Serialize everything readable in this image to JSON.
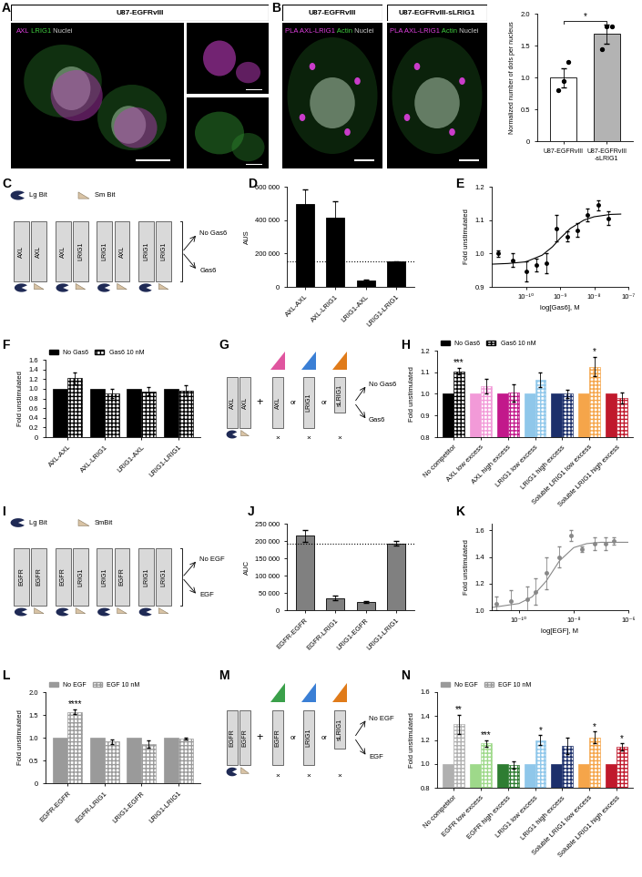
{
  "chart_data": [
    {
      "type": "bar",
      "categories": [
        "U87-EGFRvIII",
        "U87-EGFRvIII\n-sLRIG1"
      ],
      "values": [
        1.0,
        1.68
      ],
      "errors": [
        0.15,
        0.15
      ],
      "points": [
        [
          0.8,
          0.95,
          1.25
        ],
        [
          1.45,
          1.8,
          1.8
        ]
      ],
      "marker": "circle",
      "colors": [
        "#ffffff",
        "#b3b3b3"
      ],
      "ylabel": "Normalized number of dots per nucleus",
      "ylim": [
        0,
        2.0
      ],
      "yticks": [
        0,
        0.5,
        1.0,
        1.5,
        2.0
      ],
      "significance": "*"
    },
    {
      "panel": "D",
      "type": "bar",
      "categories": [
        "AXL-AXL",
        "AXL-LRIG1",
        "LRIG1-AXL",
        "LRIG1-LRIG1"
      ],
      "values": [
        495000,
        415000,
        40000,
        150000
      ],
      "errors": [
        90000,
        95000,
        5000,
        5000
      ],
      "color": "#000000",
      "ylabel": "AUS",
      "ylim": [
        0,
        600000
      ],
      "yticks": [
        0,
        {
          "value": 200000,
          "label": "200 000"
        },
        {
          "value": 400000,
          "label": "400 000"
        },
        {
          "value": 600000,
          "label": "600 000"
        }
      ],
      "reference_line": 150000
    },
    {
      "panel": "E",
      "type": "scatter",
      "x": [
        1.5e-11,
        4e-11,
        1e-10,
        2e-10,
        4e-10,
        8e-10,
        1.6e-09,
        3.2e-09,
        6.4e-09,
        1.3e-08,
        2.6e-08
      ],
      "values": [
        1.0,
        0.98,
        0.945,
        0.965,
        0.97,
        1.075,
        1.05,
        1.07,
        1.115,
        1.145,
        1.105
      ],
      "errors": [
        0.01,
        0.02,
        0.03,
        0.02,
        0.03,
        0.04,
        0.015,
        0.02,
        0.02,
        0.015,
        0.02
      ],
      "fit_x": [
        1e-11,
        3e-11,
        1e-10,
        3e-10,
        6e-10,
        1e-09,
        2e-09,
        5e-09,
        1e-08,
        3e-08,
        6e-08
      ],
      "fit_values": [
        0.968,
        0.97,
        0.975,
        0.995,
        1.02,
        1.045,
        1.075,
        1.1,
        1.11,
        1.117,
        1.118
      ],
      "color": "#000000",
      "marker": "circle",
      "log": "x",
      "xlabel": "log[Gas6], M",
      "ylabel": "Fold unstimulated",
      "xlim": [
        1e-11,
        1e-07
      ],
      "xticks": [
        {
          "value": 1e-10,
          "label": "10⁻¹⁰"
        },
        {
          "value": 1e-09,
          "label": "10⁻⁹"
        },
        {
          "value": 1e-08,
          "label": "10⁻⁸"
        },
        {
          "value": 1e-07,
          "label": "10⁻⁷"
        }
      ],
      "ylim": [
        0.9,
        1.2
      ],
      "yticks": [
        0.9,
        1.0,
        1.1,
        1.2
      ]
    },
    {
      "panel": "F",
      "type": "bar",
      "categories": [
        "AXL-AXL",
        "AXL-LRIG1",
        "LRIG1-AXL",
        "LRIG1-LRIG1"
      ],
      "series": [
        {
          "name": "No Gas6",
          "color": "#000000",
          "values": [
            1,
            1,
            1,
            1
          ]
        },
        {
          "name": "Gas6 10 nM",
          "color": "#000000",
          "values": [
            1.22,
            0.9,
            0.95,
            0.96
          ],
          "errors": [
            0.12,
            0.09,
            0.08,
            0.12
          ]
        }
      ],
      "ylabel": "Fold unstimulated",
      "ylim": [
        0,
        1.6
      ],
      "yticks": [
        0,
        0.2,
        0.4,
        0.6,
        0.8,
        1.0,
        1.2,
        1.4,
        1.6
      ],
      "legend": "lower left"
    },
    {
      "panel": "H",
      "type": "bar",
      "categories": [
        "No competitor",
        "AXL low excess",
        "AXL high excess",
        "LRIG1 low excess",
        "LRIG1 high excess",
        "Soluble LRIG1 low excess",
        "Soluble LRIG1 high excess"
      ],
      "colors": [
        "#000000",
        "#f29ad8",
        "#c2188b",
        "#8fc7ea",
        "#1c2f6b",
        "#f5a54a",
        "#c0192c"
      ],
      "series": [
        {
          "name": "No Gas6",
          "color": "#000000",
          "values": [
            1,
            1,
            1,
            1,
            1,
            1,
            1
          ]
        },
        {
          "name": "Gas6 10 nM",
          "color": "#000000",
          "values": [
            1.105,
            1.035,
            1.005,
            1.065,
            1.0,
            1.125,
            0.98
          ],
          "errors": [
            0.015,
            0.035,
            0.04,
            0.035,
            0.02,
            0.045,
            0.025
          ]
        }
      ],
      "significance": [
        "***",
        null,
        null,
        null,
        null,
        "*",
        null
      ],
      "ylabel": "Fold unstimulated",
      "ylim": [
        0.8,
        1.2
      ],
      "yticks": [
        0.8,
        0.9,
        1.0,
        1.1,
        1.2
      ],
      "legend": "lower left"
    },
    {
      "panel": "J",
      "type": "bar",
      "categories": [
        "EGFR-EGFR",
        "EGFR-LRIG1",
        "LRIG1-EGFR",
        "LRIG1-LRIG1"
      ],
      "values": [
        215000,
        35000,
        23000,
        193000
      ],
      "errors": [
        17000,
        7000,
        3000,
        6000
      ],
      "color": "#808080",
      "ylabel": "AUC",
      "ylim": [
        0,
        250000
      ],
      "yticks": [
        0,
        {
          "value": 50000,
          "label": "50 000"
        },
        {
          "value": 100000,
          "label": "100 000"
        },
        {
          "value": 150000,
          "label": "150 000"
        },
        {
          "value": 200000,
          "label": "200 000"
        },
        {
          "value": 250000,
          "label": "250 000"
        }
      ],
      "reference_line": 193000
    },
    {
      "panel": "K",
      "type": "scatter",
      "x": [
        1.5e-11,
        5e-11,
        2e-10,
        4e-10,
        1e-09,
        3e-09,
        8e-09,
        2e-08,
        6e-08,
        1.5e-07,
        3e-07
      ],
      "values": [
        1.05,
        1.07,
        1.08,
        1.14,
        1.28,
        1.4,
        1.56,
        1.46,
        1.5,
        1.5,
        1.52
      ],
      "errors": [
        0.05,
        0.08,
        0.1,
        0.1,
        0.12,
        0.08,
        0.04,
        0.02,
        0.05,
        0.05,
        0.03
      ],
      "fit_x": [
        1e-11,
        1e-10,
        3e-10,
        1e-09,
        3e-09,
        1e-08,
        3e-08,
        1e-07,
        1e-06
      ],
      "fit_values": [
        1.02,
        1.05,
        1.1,
        1.22,
        1.37,
        1.47,
        1.5,
        1.51,
        1.51
      ],
      "color": "#888888",
      "marker": "circle",
      "log": "x",
      "xlabel": "log[EGF], M",
      "ylabel": "Fold unstimulated",
      "xlim": [
        1e-11,
        1e-06
      ],
      "xticks": [
        {
          "value": 1e-10,
          "label": "10⁻¹⁰"
        },
        {
          "value": 1e-08,
          "label": "10⁻⁸"
        },
        {
          "value": 1e-06,
          "label": "10⁻⁶"
        }
      ],
      "ylim": [
        1.0,
        1.65
      ],
      "yticks": [
        1.0,
        1.2,
        1.4,
        1.6
      ]
    },
    {
      "panel": "L",
      "type": "bar",
      "categories": [
        "EGFR-EGFR",
        "EGFR-LRIG1",
        "LRIG1-EGFR",
        "LRIG1-LRIG1"
      ],
      "series": [
        {
          "name": "No EGF",
          "color": "#9a9a9a",
          "values": [
            1,
            1,
            1,
            1
          ]
        },
        {
          "name": "EGF 10 nM",
          "color": "#9a9a9a",
          "values": [
            1.57,
            0.92,
            0.87,
            0.98
          ],
          "errors": [
            0.05,
            0.05,
            0.08,
            0.02
          ]
        }
      ],
      "significance": [
        "****",
        null,
        null,
        null
      ],
      "ylabel": "Fold unstimulated",
      "ylim": [
        0,
        2.0
      ],
      "yticks": [
        0,
        0.5,
        1.0,
        1.5,
        2.0
      ],
      "legend": "lower left"
    },
    {
      "panel": "N",
      "type": "bar",
      "categories": [
        "No competitor",
        "EGFR low excess",
        "EGFR high excess",
        "LRIG1 low excess",
        "LRIG1 high excess",
        "Soluble LRIG1 low excess",
        "Soluble LRIG1 high excess"
      ],
      "colors": [
        "#b0b0b0",
        "#9ed98a",
        "#2e7d32",
        "#8fc7ea",
        "#1c2f6b",
        "#f5a54a",
        "#c0192c"
      ],
      "series": [
        {
          "name": "No EGF",
          "color": "#9a9a9a",
          "values": [
            1,
            1,
            1,
            1,
            1,
            1,
            1
          ]
        },
        {
          "name": "EGF 10 nM",
          "color": "#9a9a9a",
          "values": [
            1.33,
            1.17,
            0.99,
            1.2,
            1.15,
            1.22,
            1.14
          ],
          "errors": [
            0.08,
            0.03,
            0.03,
            0.04,
            0.07,
            0.05,
            0.03
          ]
        }
      ],
      "significance": [
        "**",
        "***",
        null,
        "*",
        null,
        "*",
        "*"
      ],
      "ylabel": "Fold unstimulated",
      "ylim": [
        0.8,
        1.6
      ],
      "yticks": [
        0.8,
        1.0,
        1.2,
        1.4,
        1.6
      ],
      "legend": "lower left"
    }
  ],
  "images": [
    {
      "panel": "A",
      "titles": [
        "U87-EGFRvIII"
      ],
      "channels": [
        {
          "label": "AXL",
          "color": "#e040e0"
        },
        {
          "label": "LRIG1",
          "color": "#40d040"
        },
        {
          "label": "Nuclei",
          "color": "#cccccc"
        }
      ]
    },
    {
      "panel": "B",
      "titles": [
        "U87-EGFRvIII",
        "U87-EGFRvIII-sLRIG1"
      ],
      "channels": [
        {
          "label": "PLA AXL-LRIG1",
          "color": "#e040e0"
        },
        {
          "label": "Actin",
          "color": "#40d040"
        },
        {
          "label": "Nuclei",
          "color": "#cccccc"
        }
      ]
    }
  ],
  "diagrams": [
    {
      "panel": "C",
      "lg_bit": "Lg Bit",
      "sm_bit": "Sm Bit",
      "constructs": [
        [
          "AXL",
          "AXL"
        ],
        [
          "AXL",
          "LRIG1"
        ],
        [
          "LRIG1",
          "AXL"
        ],
        [
          "LRIG1",
          "LRIG1"
        ]
      ],
      "conditions": [
        "No Gas6",
        "Gas6"
      ]
    },
    {
      "panel": "G",
      "construct": [
        "AXL",
        "AXL"
      ],
      "plus": "+",
      "competitors": [
        {
          "label": "AXL",
          "color": "#e0559f"
        },
        {
          "label": "LRIG1",
          "color": "#3a7fd5"
        },
        {
          "label": "sLRIG1",
          "color": "#e07b1a"
        }
      ],
      "joiner": "or",
      "multiplier": "×",
      "conditions": [
        "No Gas6",
        "Gas6"
      ]
    },
    {
      "panel": "I",
      "lg_bit": "Lg Bit",
      "sm_bit": "SmBit",
      "constructs": [
        [
          "EGFR",
          "EGFR"
        ],
        [
          "EGFR",
          "LRIG1"
        ],
        [
          "LRIG1",
          "EGFR"
        ],
        [
          "LRIG1",
          "LRIG1"
        ]
      ],
      "conditions": [
        "No EGF",
        "EGF"
      ]
    },
    {
      "panel": "M",
      "construct": [
        "EGFR",
        "EGFR"
      ],
      "plus": "+",
      "competitors": [
        {
          "label": "EGFR",
          "color": "#3aa04a"
        },
        {
          "label": "LRIG1",
          "color": "#3a7fd5"
        },
        {
          "label": "sLRIG1",
          "color": "#e07b1a"
        }
      ],
      "joiner": "or",
      "multiplier": "×",
      "conditions": [
        "No EGF",
        "EGF"
      ]
    }
  ]
}
